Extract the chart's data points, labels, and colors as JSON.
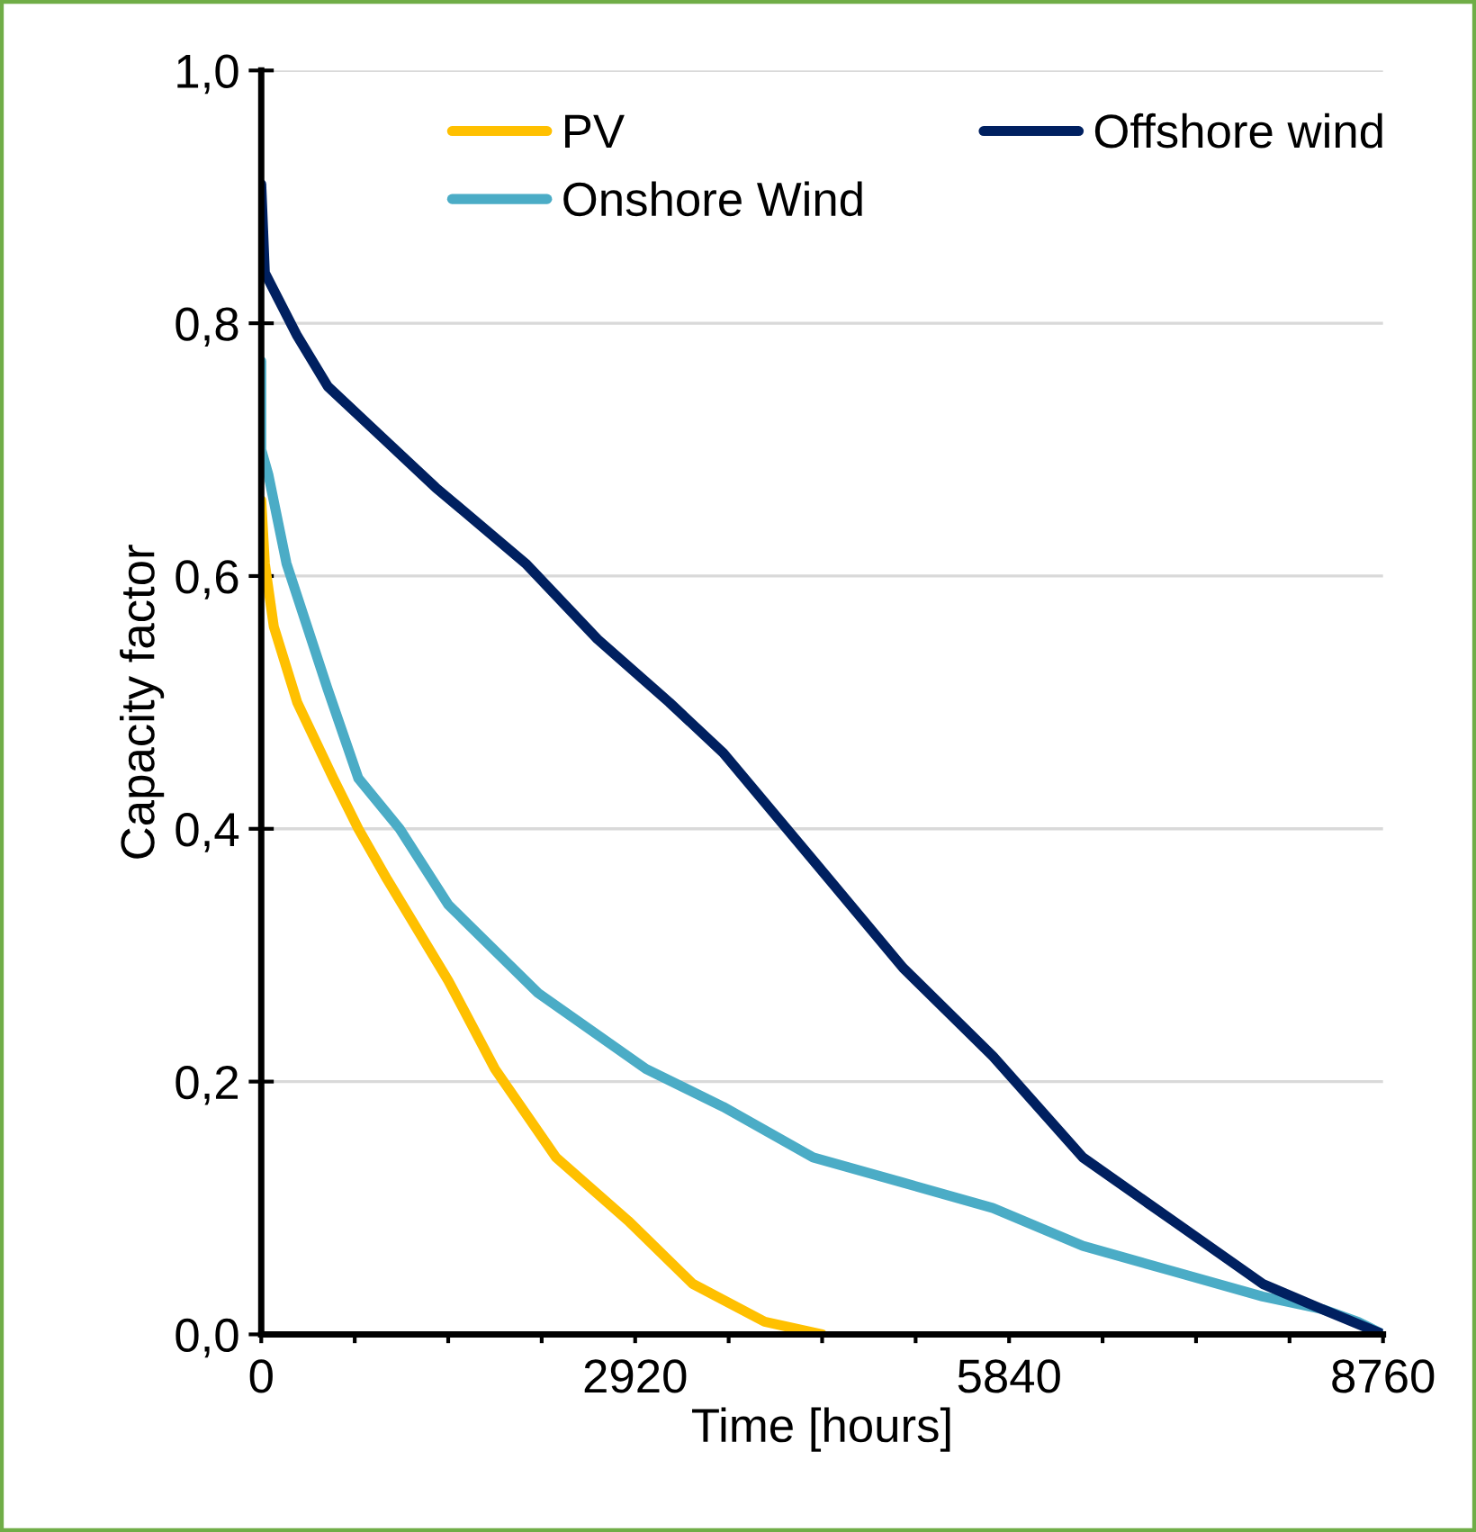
{
  "chart_data": {
    "type": "line",
    "xlabel": "Time [hours]",
    "ylabel": "Capacity factor",
    "xlim": [
      0,
      8760
    ],
    "ylim": [
      0,
      1.0
    ],
    "xticks": [
      0,
      {
        "value": 730,
        "label": null
      },
      {
        "value": 1460,
        "label": null
      },
      {
        "value": 2190,
        "label": null
      },
      2920,
      {
        "value": 3650,
        "label": null
      },
      {
        "value": 4380,
        "label": null
      },
      {
        "value": 5110,
        "label": null
      },
      5840,
      {
        "value": 6570,
        "label": null
      },
      {
        "value": 7300,
        "label": null
      },
      {
        "value": 8030,
        "label": null
      },
      8760
    ],
    "yticks": [
      {
        "value": 0,
        "label": "0,0"
      },
      {
        "value": 0.2,
        "label": "0,2"
      },
      {
        "value": 0.4,
        "label": "0,4"
      },
      {
        "value": 0.6,
        "label": "0,6"
      },
      {
        "value": 0.8,
        "label": "0,8"
      },
      {
        "value": 1.0,
        "label": "1,0"
      }
    ],
    "grid": "y",
    "legend": "top right",
    "marker": "none",
    "line_style": "solid",
    "series": [
      {
        "name": "PV",
        "color": "#ffc000",
        "x": [
          0,
          28,
          98,
          281,
          562,
          758,
          983,
          1460,
          1825,
          2302,
          2864,
          3369,
          3931,
          4380
        ],
        "values": [
          0.66,
          0.61,
          0.56,
          0.5,
          0.44,
          0.4,
          0.36,
          0.28,
          0.21,
          0.14,
          0.09,
          0.04,
          0.01,
          0.0
        ]
      },
      {
        "name": "Onshore Wind",
        "color": "#4bacc6",
        "x": [
          0,
          0,
          56,
          197,
          520,
          758,
          1081,
          1460,
          2162,
          3004,
          3608,
          4310,
          5012,
          5714,
          6416,
          7118,
          7820,
          8283,
          8564,
          8760
        ],
        "values": [
          0.77,
          0.7,
          0.68,
          0.61,
          0.51,
          0.44,
          0.4,
          0.34,
          0.27,
          0.21,
          0.18,
          0.14,
          0.12,
          0.1,
          0.07,
          0.05,
          0.03,
          0.02,
          0.01,
          0.0
        ]
      },
      {
        "name": "Offshore wind",
        "color": "#002060",
        "x": [
          0,
          28,
          281,
          520,
          941,
          1362,
          2064,
          2626,
          3187,
          3608,
          4352,
          5012,
          5714,
          6416,
          7118,
          7820,
          8283,
          8760
        ],
        "values": [
          0.91,
          0.84,
          0.79,
          0.75,
          0.71,
          0.67,
          0.61,
          0.55,
          0.5,
          0.46,
          0.37,
          0.29,
          0.22,
          0.14,
          0.09,
          0.04,
          0.02,
          0.0
        ]
      }
    ]
  }
}
